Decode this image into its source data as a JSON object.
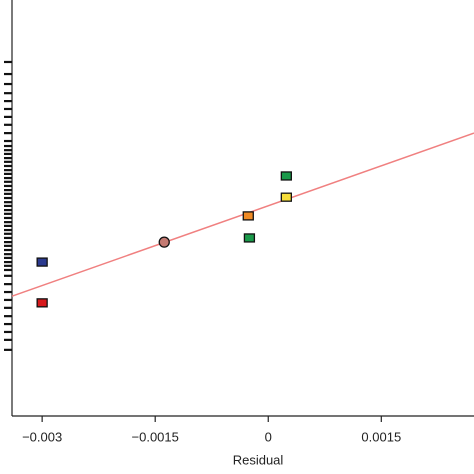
{
  "chart_data": {
    "type": "scatter",
    "x_label": "Residual",
    "x": [
      -0.003,
      -0.003,
      -0.00138,
      -0.000265,
      -0.00025,
      0.00024,
      0.00024
    ],
    "values": [
      0.37,
      0.272,
      0.418,
      0.481,
      0.428,
      0.577,
      0.526
    ],
    "colors": [
      "#2b3a8f",
      "#d7191c",
      "#c47a72",
      "#f08a24",
      "#1a9a4a",
      "#1a9a4a",
      "#f6dd3a"
    ],
    "markers": [
      "square",
      "square",
      "circle",
      "square",
      "square",
      "square",
      "square"
    ],
    "fit_line": {
      "x": [
        -0.0034,
        0.00273
      ],
      "values": [
        0.288,
        0.68
      ],
      "color": "#f08080"
    },
    "rug": [
      0.851,
      0.822,
      0.798,
      0.776,
      0.757,
      0.738,
      0.719,
      0.7,
      0.68,
      0.661,
      0.649,
      0.639,
      0.63,
      0.62,
      0.611,
      0.601,
      0.591,
      0.582,
      0.572,
      0.563,
      0.553,
      0.543,
      0.534,
      0.524,
      0.514,
      0.505,
      0.495,
      0.486,
      0.476,
      0.466,
      0.457,
      0.447,
      0.438,
      0.428,
      0.418,
      0.409,
      0.399,
      0.389,
      0.38,
      0.37,
      0.361,
      0.351,
      0.337,
      0.317,
      0.298,
      0.279,
      0.26,
      0.24,
      0.221,
      0.202,
      0.183,
      0.159
    ],
    "xlim": [
      -0.0034,
      0.00273
    ],
    "ylim": [
      0,
      1
    ],
    "xticks": [
      {
        "value": -0.003,
        "label": "−0.003"
      },
      {
        "value": -0.0015,
        "label": "−0.0015"
      },
      0,
      0.0015
    ]
  }
}
